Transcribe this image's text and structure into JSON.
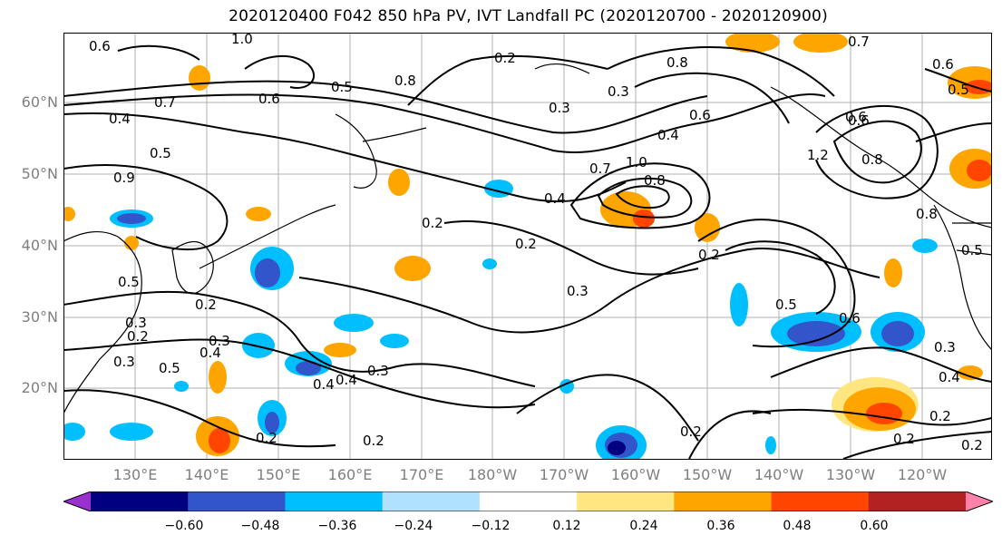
{
  "title": "2020120400 F042 850 hPa PV, IVT Landfall PC (2020120700 - 2020120900)",
  "lat_labels": [
    "60°N",
    "50°N",
    "40°N",
    "30°N",
    "20°N"
  ],
  "lon_labels": [
    "130°E",
    "140°E",
    "150°E",
    "160°E",
    "170°E",
    "180°W",
    "170°W",
    "160°W",
    "150°W",
    "140°W",
    "130°W",
    "120°W"
  ],
  "colorbar": {
    "colors": [
      "#9b30d0",
      "#000080",
      "#3355cc",
      "#00bfff",
      "#b0e2ff",
      "#ffffff",
      "#ffe680",
      "#ffa500",
      "#ff4500",
      "#b22222",
      "#ff82ab"
    ],
    "tick_labels": [
      "−0.60",
      "−0.48",
      "−0.36",
      "−0.24",
      "−0.12",
      "0.12",
      "0.24",
      "0.36",
      "0.48",
      "0.60"
    ],
    "extend": "both"
  },
  "contour_labels": [
    "0.6",
    "1.0",
    "0.7",
    "0.5",
    "0.6",
    "0.8",
    "0.2",
    "0.3",
    "0.8",
    "0.4",
    "0.6",
    "0.6",
    "1.2",
    "0.8",
    "0.4",
    "0.5",
    "0.9",
    "0.7",
    "1.0",
    "0.8",
    "0.4",
    "0.2",
    "0.2",
    "0.3",
    "0.5",
    "0.5",
    "0.3",
    "0.6",
    "0.3",
    "0.4",
    "0.2",
    "0.3",
    "0.5",
    "0.4",
    "0.3",
    "0.4",
    "0.2",
    "0.2",
    "0.2",
    "0.2",
    "0.2",
    "0.8",
    "0.5",
    "0.2",
    "0.7",
    "0.6",
    "0.2",
    "0.3",
    "0.4",
    "0.6",
    "0.3",
    "0.5",
    "0.2"
  ]
}
